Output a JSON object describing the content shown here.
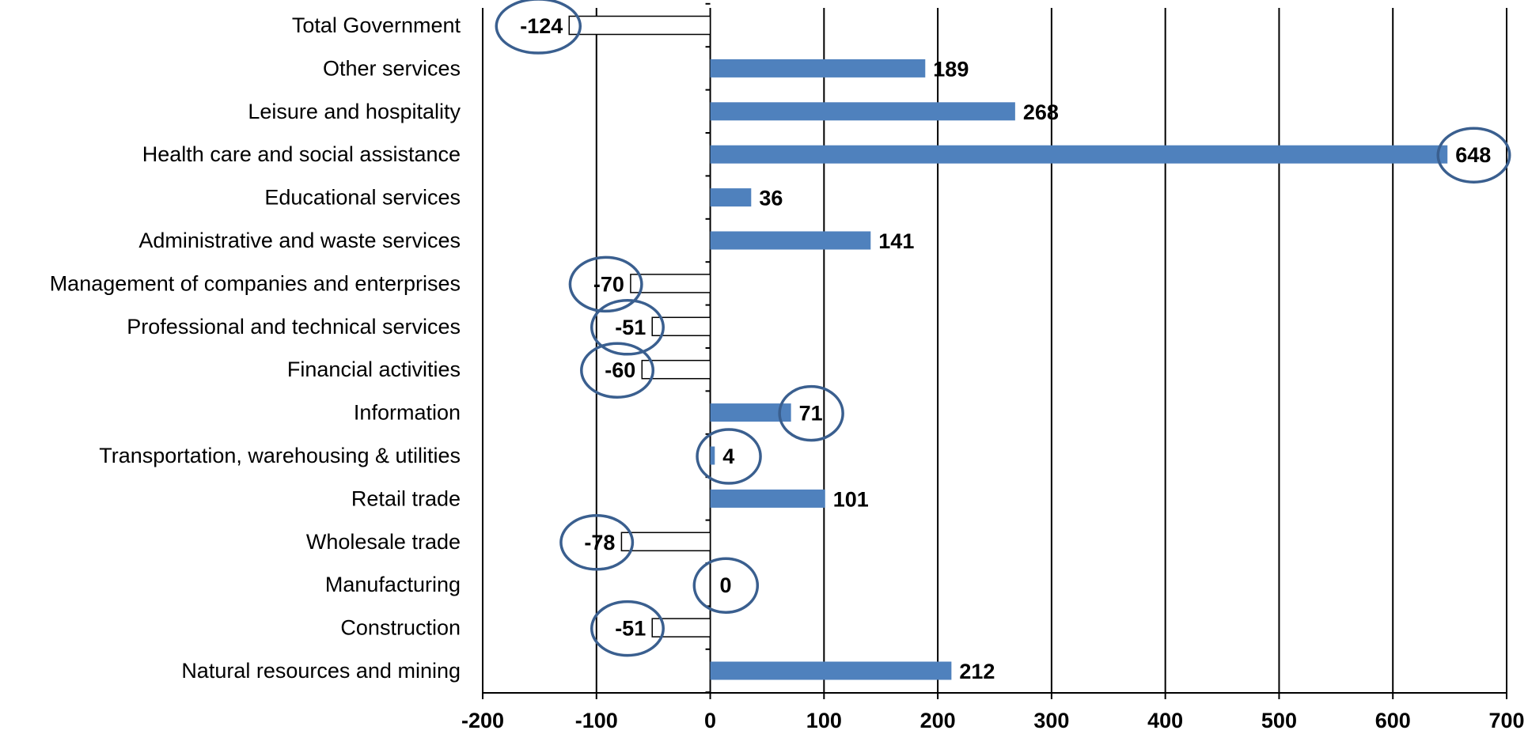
{
  "chart_data": {
    "type": "bar",
    "orientation": "horizontal",
    "categories": [
      "Total Government",
      "Other services",
      "Leisure and hospitality",
      "Health care and social assistance",
      "Educational services",
      "Administrative and waste services",
      "Management of companies and enterprises",
      "Professional and technical services",
      "Financial activities",
      "Information",
      "Transportation, warehousing & utilities",
      "Retail trade",
      "Wholesale trade",
      "Manufacturing",
      "Construction",
      "Natural resources and mining"
    ],
    "values": [
      -124,
      189,
      268,
      648,
      36,
      141,
      -70,
      -51,
      -60,
      71,
      4,
      101,
      -78,
      0,
      -51,
      212
    ],
    "data_labels": [
      "-124",
      "189",
      "268",
      "648",
      "36",
      "141",
      "-70",
      "-51",
      "-60",
      "71",
      "4",
      "101",
      "-78",
      "0",
      "-51",
      "212"
    ],
    "circled": [
      true,
      false,
      false,
      true,
      false,
      false,
      true,
      true,
      true,
      true,
      true,
      false,
      true,
      true,
      true,
      false
    ],
    "xlim": [
      -200,
      700
    ],
    "xticks": [
      -200,
      -100,
      0,
      100,
      200,
      300,
      400,
      500,
      600,
      700
    ],
    "xtick_labels": [
      "-200",
      "-100",
      "0",
      "100",
      "200",
      "300",
      "400",
      "500",
      "600",
      "700"
    ],
    "grid": "vertical",
    "legend": "none",
    "title": "",
    "xlabel": "",
    "ylabel": "",
    "colors": {
      "positive_fill": "#4f81bd",
      "negative_fill": "#ffffff",
      "negative_stroke": "#000000",
      "circle_stroke": "#3a5f8f",
      "grid": "#000000"
    }
  }
}
